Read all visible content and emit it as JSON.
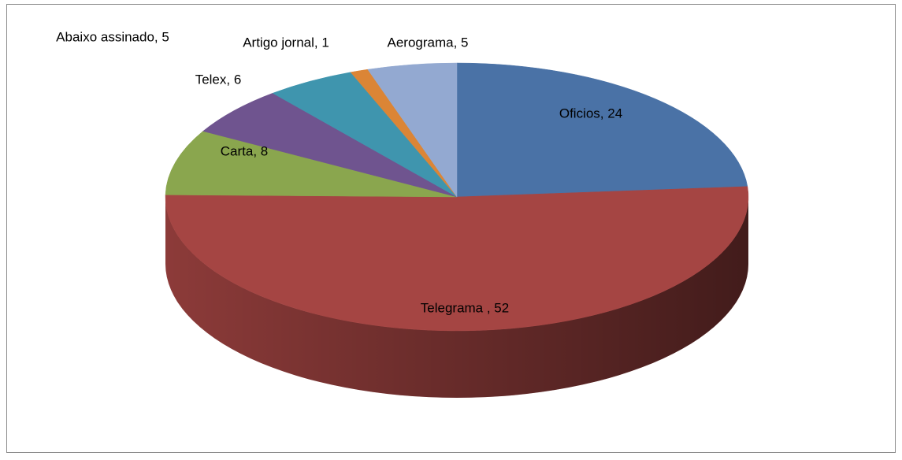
{
  "chart_data": {
    "type": "pie3d",
    "values": [
      24,
      52,
      8,
      6,
      5,
      1,
      5
    ],
    "value_labels": [
      "Oficios, 24",
      "Telegrama , 52",
      "Carta, 8",
      "Telex, 6",
      "Abaixo assinado, 5",
      "Artigo jornal, 1",
      "Aerograma, 5"
    ],
    "colors": [
      "#4a72a6",
      "#a54543",
      "#8aa64e",
      "#6f548f",
      "#3f95ae",
      "#db8536",
      "#93a9d1"
    ]
  }
}
